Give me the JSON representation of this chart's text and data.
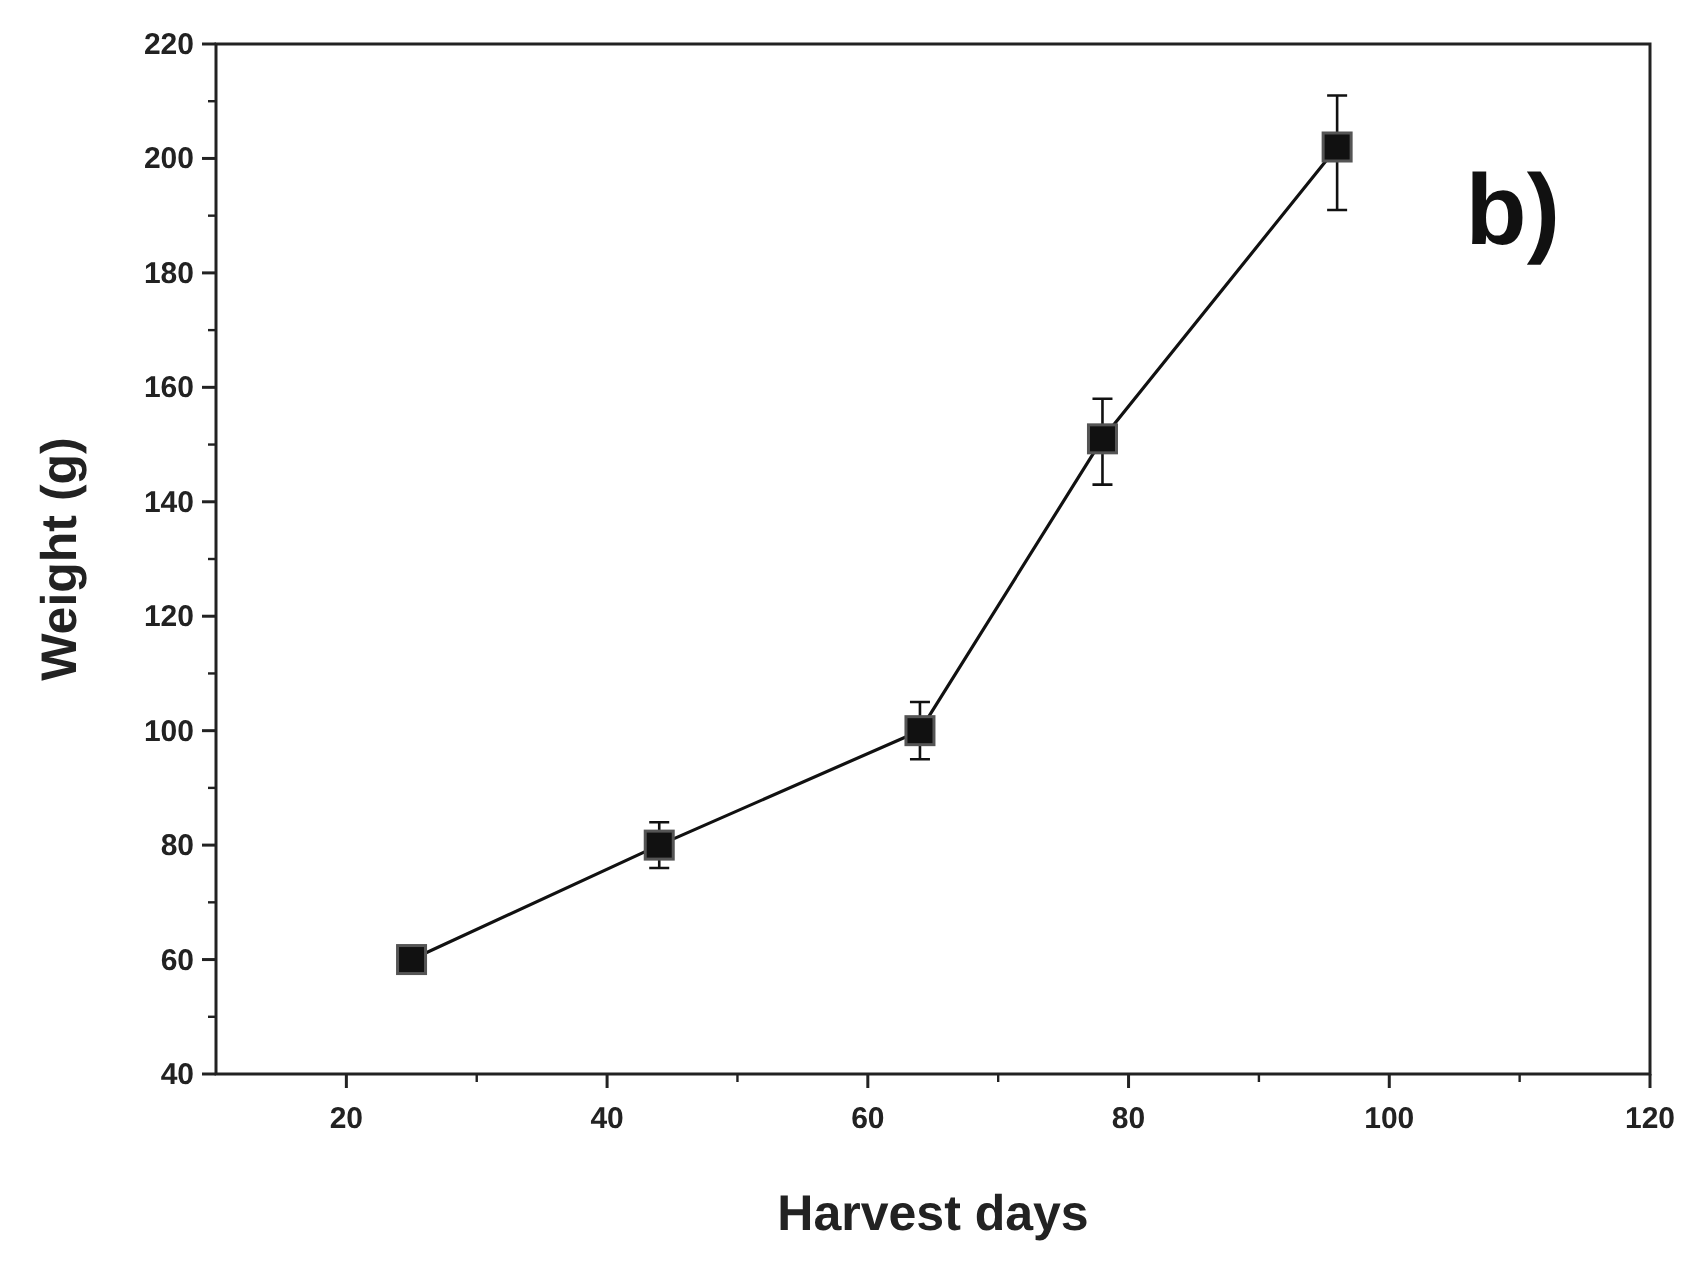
{
  "chart_data": {
    "type": "line",
    "xlabel": "Harvest days",
    "ylabel": "Weight (g)",
    "annotations": [
      "b)"
    ],
    "x": [
      25,
      44,
      64,
      78,
      96
    ],
    "series": [
      {
        "color": "#111111",
        "values": [
          60,
          80,
          100,
          151,
          202
        ],
        "errors": [
          null,
          4,
          5,
          [
            143,
            158
          ],
          [
            191,
            211
          ]
        ]
      }
    ],
    "xlim": [
      10,
      120
    ],
    "xticks": [
      20,
      40,
      60,
      80,
      100,
      120
    ],
    "ylim": [
      40,
      220
    ],
    "yticks": [
      40,
      60,
      80,
      100,
      120,
      140,
      160,
      180,
      200,
      220
    ],
    "marker": "square",
    "line_style": "solid",
    "grid": false
  }
}
